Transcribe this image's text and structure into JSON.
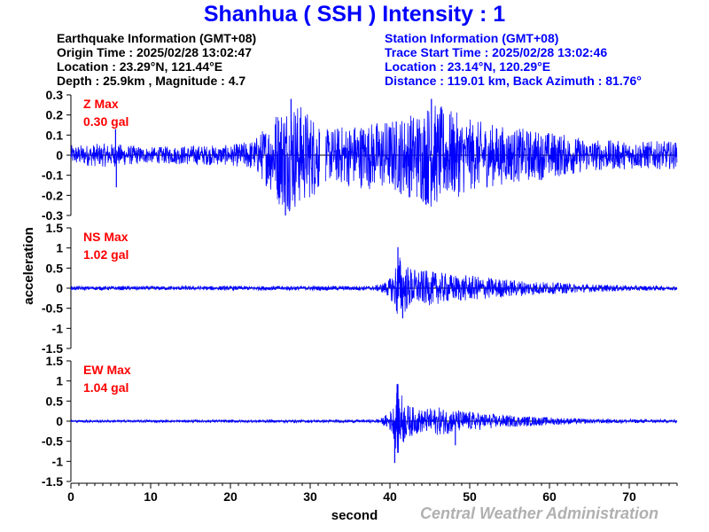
{
  "header": {
    "title": "Shanhua ( SSH ) Intensity : 1"
  },
  "earthquake_info": {
    "heading": "Earthquake Information  (GMT+08)",
    "origin_time": "Origin Time : 2025/02/28 13:02:47",
    "location": "Location : 23.29°N, 121.44°E",
    "depth_magnitude": "Depth : 25.9km , Magnitude : 4.7"
  },
  "station_info": {
    "heading": "Station Information  (GMT+08)",
    "trace_start": "Trace Start Time : 2025/02/28 13:02:46",
    "location": "Location : 23.14°N, 120.29°E",
    "distance": "Distance : 119.01 km, Back Azimuth : 81.76°"
  },
  "footer": {
    "credit": "Central Weather Administration"
  },
  "colors": {
    "title": "#0000ff",
    "trace": "#0000ff",
    "max_label": "#ff0000",
    "credit": "#b0b0b0"
  },
  "chart_data": {
    "type": "line",
    "xlabel": "second",
    "ylabel": "acceleration",
    "xlim": [
      0,
      76
    ],
    "xticks": [
      0,
      10,
      20,
      30,
      40,
      50,
      60,
      70
    ],
    "grid": false,
    "panels": [
      {
        "name": "Z",
        "max_title": "Z Max",
        "max_value": "0.30 gal",
        "ylim": [
          -0.3,
          0.3
        ],
        "yticks": [
          0.3,
          0.2,
          0.1,
          0,
          -0.1,
          -0.2,
          -0.3
        ],
        "ytick_labels": [
          "0.3",
          "0.2",
          "0.1",
          "0",
          "-0.1",
          "-0.2",
          "-0.3"
        ],
        "envelope": {
          "t": [
            0,
            5,
            10,
            15,
            20,
            23,
            25,
            26,
            27,
            28,
            30,
            31,
            32,
            35,
            40,
            43,
            45,
            48,
            50,
            55,
            60,
            65,
            70,
            76
          ],
          "amp": [
            0.05,
            0.06,
            0.04,
            0.05,
            0.05,
            0.08,
            0.18,
            0.25,
            0.28,
            0.28,
            0.22,
            0.2,
            0.13,
            0.16,
            0.18,
            0.22,
            0.27,
            0.22,
            0.18,
            0.14,
            0.12,
            0.08,
            0.07,
            0.07
          ]
        },
        "gap": [
          31.2,
          31.9
        ],
        "spikes": [
          {
            "t": 5.6,
            "v": 0.13
          },
          {
            "t": 5.7,
            "v": -0.16
          },
          {
            "t": 26.9,
            "v": -0.3
          },
          {
            "t": 27.6,
            "v": 0.28
          },
          {
            "t": 45.2,
            "v": 0.28
          }
        ]
      },
      {
        "name": "NS",
        "max_title": "NS Max",
        "max_value": "1.02 gal",
        "ylim": [
          -1.5,
          1.5
        ],
        "yticks": [
          1.5,
          1,
          0.5,
          0,
          -0.5,
          -1,
          -1.5
        ],
        "ytick_labels": [
          "1.5",
          "1",
          "0.5",
          "0",
          "-0.5",
          "-1",
          "-1.5"
        ],
        "envelope": {
          "t": [
            0,
            38,
            39,
            40,
            40.5,
            41,
            41.5,
            42,
            43,
            44,
            46,
            48,
            50,
            52,
            55,
            60,
            65,
            70,
            76
          ],
          "amp": [
            0.05,
            0.06,
            0.12,
            0.25,
            0.45,
            0.9,
            0.8,
            0.6,
            0.5,
            0.45,
            0.4,
            0.35,
            0.32,
            0.28,
            0.22,
            0.15,
            0.1,
            0.07,
            0.05
          ]
        },
        "spikes": [
          {
            "t": 41.0,
            "v": 1.02
          },
          {
            "t": 41.6,
            "v": -0.75
          }
        ]
      },
      {
        "name": "EW",
        "max_title": "EW Max",
        "max_value": "1.04 gal",
        "ylim": [
          -1.5,
          1.5
        ],
        "yticks": [
          1.5,
          1,
          0.5,
          0,
          -0.5,
          -1,
          -1.5
        ],
        "ytick_labels": [
          "1.5",
          "1",
          "0.5",
          "0",
          "-0.5",
          "-1",
          "-1.5"
        ],
        "envelope": {
          "t": [
            0,
            38,
            39,
            40,
            40.5,
            41,
            41.5,
            42,
            43,
            44,
            46,
            48,
            50,
            52,
            55,
            60,
            65,
            70,
            76
          ],
          "amp": [
            0.03,
            0.04,
            0.08,
            0.25,
            0.45,
            0.95,
            0.7,
            0.45,
            0.35,
            0.3,
            0.35,
            0.3,
            0.25,
            0.2,
            0.15,
            0.1,
            0.06,
            0.05,
            0.04
          ]
        },
        "spikes": [
          {
            "t": 40.9,
            "v": 0.92
          },
          {
            "t": 40.6,
            "v": -1.04
          },
          {
            "t": 48.2,
            "v": -0.6
          }
        ]
      }
    ]
  }
}
